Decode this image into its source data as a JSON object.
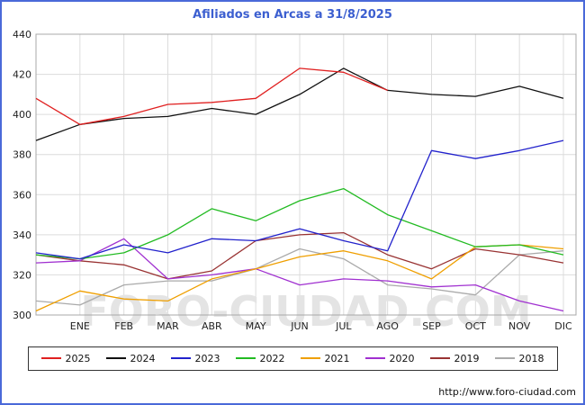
{
  "header": {
    "title": "Afiliados en Arcas a 31/8/2025"
  },
  "watermark": "FORO-CIUDAD.COM",
  "footer": {
    "url": "http://www.foro-ciudad.com"
  },
  "chart_data": {
    "type": "line",
    "title": "Afiliados en Arcas a 31/8/2025",
    "categories": [
      "",
      "ENE",
      "FEB",
      "MAR",
      "ABR",
      "MAY",
      "JUN",
      "JUL",
      "AGO",
      "SEP",
      "OCT",
      "NOV",
      "DIC"
    ],
    "ylim": [
      300,
      440
    ],
    "y_ticks": [
      300,
      320,
      340,
      360,
      380,
      400,
      420,
      440
    ],
    "grid": true,
    "legend_position": "bottom",
    "series": [
      {
        "name": "2025",
        "color": "#e02020",
        "values": [
          408,
          395,
          399,
          405,
          406,
          408,
          423,
          421,
          412
        ]
      },
      {
        "name": "2024",
        "color": "#111111",
        "values": [
          387,
          395,
          398,
          399,
          403,
          400,
          410,
          423,
          412,
          410,
          409,
          414,
          408
        ]
      },
      {
        "name": "2023",
        "color": "#2222cc",
        "values": [
          331,
          328,
          335,
          331,
          338,
          337,
          343,
          337,
          332,
          382,
          378,
          382,
          387
        ]
      },
      {
        "name": "2022",
        "color": "#22bb22",
        "values": [
          330,
          328,
          331,
          340,
          353,
          347,
          357,
          363,
          350,
          342,
          334,
          335,
          330
        ]
      },
      {
        "name": "2021",
        "color": "#ef9f00",
        "values": [
          302,
          312,
          308,
          307,
          318,
          323,
          329,
          332,
          327,
          318,
          334,
          335,
          333
        ]
      },
      {
        "name": "2020",
        "color": "#a030d0",
        "values": [
          326,
          327,
          338,
          318,
          320,
          323,
          315,
          318,
          317,
          314,
          315,
          307,
          302
        ]
      },
      {
        "name": "2019",
        "color": "#993333",
        "values": [
          330,
          327,
          325,
          318,
          322,
          337,
          340,
          341,
          330,
          323,
          333,
          330,
          326
        ]
      },
      {
        "name": "2018",
        "color": "#aaaaaa",
        "values": [
          307,
          305,
          315,
          317,
          317,
          323,
          333,
          328,
          315,
          313,
          310,
          330,
          332
        ]
      }
    ]
  }
}
